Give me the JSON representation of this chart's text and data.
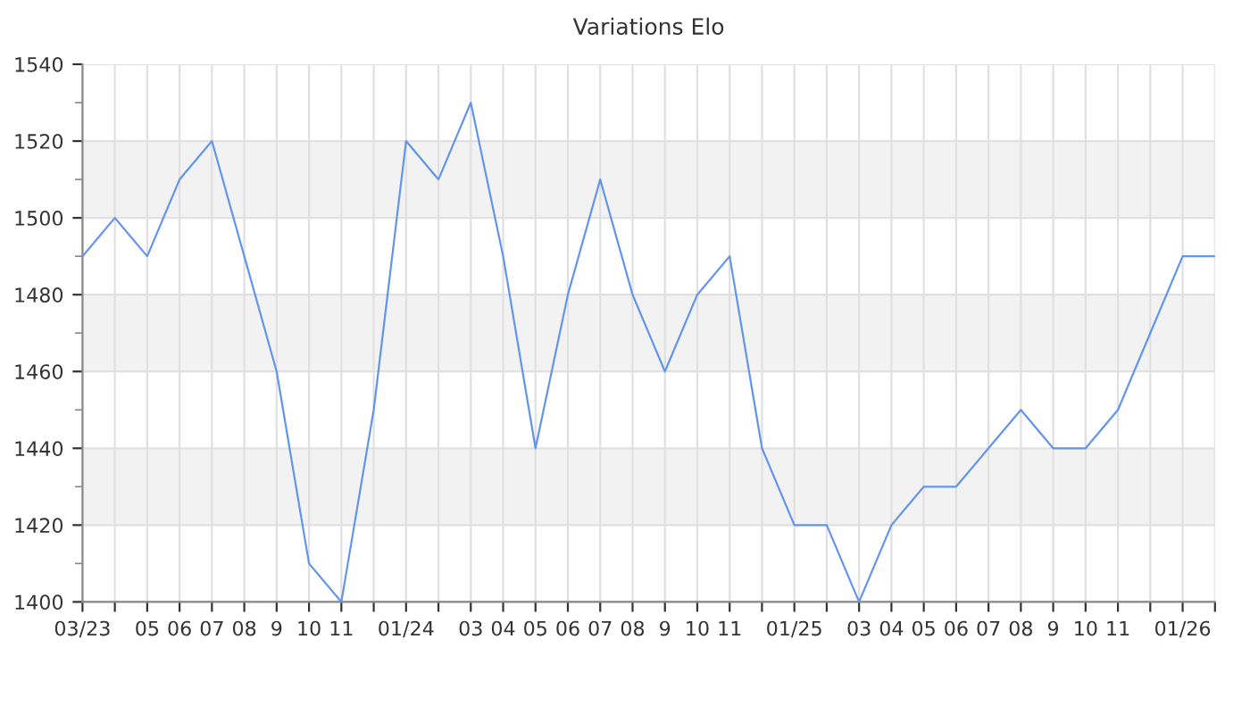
{
  "chart_data": {
    "type": "line",
    "title": "Variations Elo",
    "categories": [
      "03/23",
      null,
      "05",
      "06",
      "07",
      "08",
      "9",
      "10",
      "11",
      null,
      "01/24",
      null,
      "03",
      "04",
      "05",
      "06",
      "07",
      "08",
      "9",
      "10",
      "11",
      null,
      "01/25",
      null,
      "03",
      "04",
      "05",
      "06",
      "07",
      "08",
      "9",
      "10",
      "11",
      null,
      "01/26",
      null
    ],
    "series": [
      {
        "color": "#6495ed",
        "values": [
          1490,
          1500,
          1490,
          1510,
          1520,
          1490,
          1460,
          1410,
          1400,
          1450,
          1520,
          1510,
          1530,
          1490,
          1440,
          1480,
          1510,
          1480,
          1460,
          1480,
          1490,
          1440,
          1420,
          1420,
          1400,
          1420,
          1430,
          1430,
          1440,
          1450,
          1440,
          1440,
          1450,
          1470,
          1490,
          1490
        ]
      }
    ],
    "ylim": [
      1400,
      1540
    ],
    "yticks": [
      1400,
      1420,
      1440,
      1460,
      1480,
      1500,
      1520,
      1540
    ],
    "bands": [
      {
        "axis": "y",
        "from": 1420,
        "to": 1440,
        "color": "#f2f2f2"
      },
      {
        "axis": "y",
        "from": 1460,
        "to": 1480,
        "color": "#f2f2f2"
      },
      {
        "axis": "y",
        "from": 1500,
        "to": 1520,
        "color": "#f2f2f2"
      }
    ],
    "grid": true,
    "marker": "none",
    "line_style": "solid",
    "legend": false
  }
}
